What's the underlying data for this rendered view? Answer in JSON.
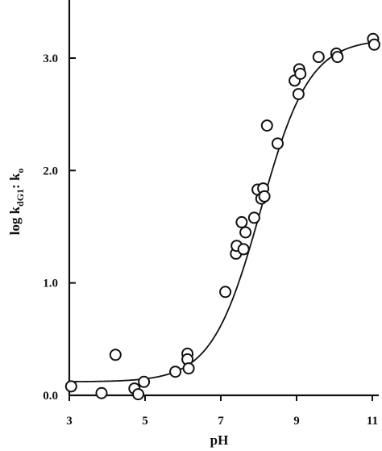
{
  "chart_data": {
    "type": "scatter",
    "xlabel": "pH",
    "ylabel": "log k",
    "ylabel_sub": "dG1",
    "ylabel_tail": ": k",
    "ylabel_tail_sub": "o",
    "xlim": [
      3,
      11
    ],
    "ylim": [
      0,
      3.5
    ],
    "x_ticks": [
      3,
      5,
      7,
      9,
      11
    ],
    "y_ticks": [
      0.0,
      1.0,
      2.0,
      3.0
    ],
    "x_tick_labels": [
      "3",
      "5",
      "7",
      "9",
      "11"
    ],
    "y_tick_labels": [
      "0.0",
      "1.0",
      "2.0",
      "3.0"
    ],
    "grid": false,
    "points": [
      {
        "x": 3.05,
        "y": 0.08
      },
      {
        "x": 3.85,
        "y": 0.02
      },
      {
        "x": 4.22,
        "y": 0.36
      },
      {
        "x": 4.72,
        "y": 0.06
      },
      {
        "x": 4.82,
        "y": 0.01
      },
      {
        "x": 4.97,
        "y": 0.12
      },
      {
        "x": 5.8,
        "y": 0.21
      },
      {
        "x": 6.12,
        "y": 0.37
      },
      {
        "x": 6.12,
        "y": 0.32
      },
      {
        "x": 6.15,
        "y": 0.24
      },
      {
        "x": 7.12,
        "y": 0.92
      },
      {
        "x": 7.4,
        "y": 1.26
      },
      {
        "x": 7.42,
        "y": 1.33
      },
      {
        "x": 7.55,
        "y": 1.54
      },
      {
        "x": 7.6,
        "y": 1.3
      },
      {
        "x": 7.65,
        "y": 1.45
      },
      {
        "x": 7.88,
        "y": 1.58
      },
      {
        "x": 7.97,
        "y": 1.83
      },
      {
        "x": 8.07,
        "y": 1.75
      },
      {
        "x": 8.12,
        "y": 1.84
      },
      {
        "x": 8.15,
        "y": 1.77
      },
      {
        "x": 8.22,
        "y": 2.4
      },
      {
        "x": 8.5,
        "y": 2.24
      },
      {
        "x": 8.95,
        "y": 2.8
      },
      {
        "x": 9.05,
        "y": 2.68
      },
      {
        "x": 9.07,
        "y": 2.9
      },
      {
        "x": 9.1,
        "y": 2.86
      },
      {
        "x": 9.58,
        "y": 3.01
      },
      {
        "x": 10.05,
        "y": 3.04
      },
      {
        "x": 10.08,
        "y": 3.01
      },
      {
        "x": 11.02,
        "y": 3.17
      },
      {
        "x": 11.05,
        "y": 3.12
      }
    ],
    "fit_curve": {
      "baseline": 0.12,
      "plateau": 3.17,
      "midpoint": 8.05,
      "slope": 1.55
    }
  }
}
